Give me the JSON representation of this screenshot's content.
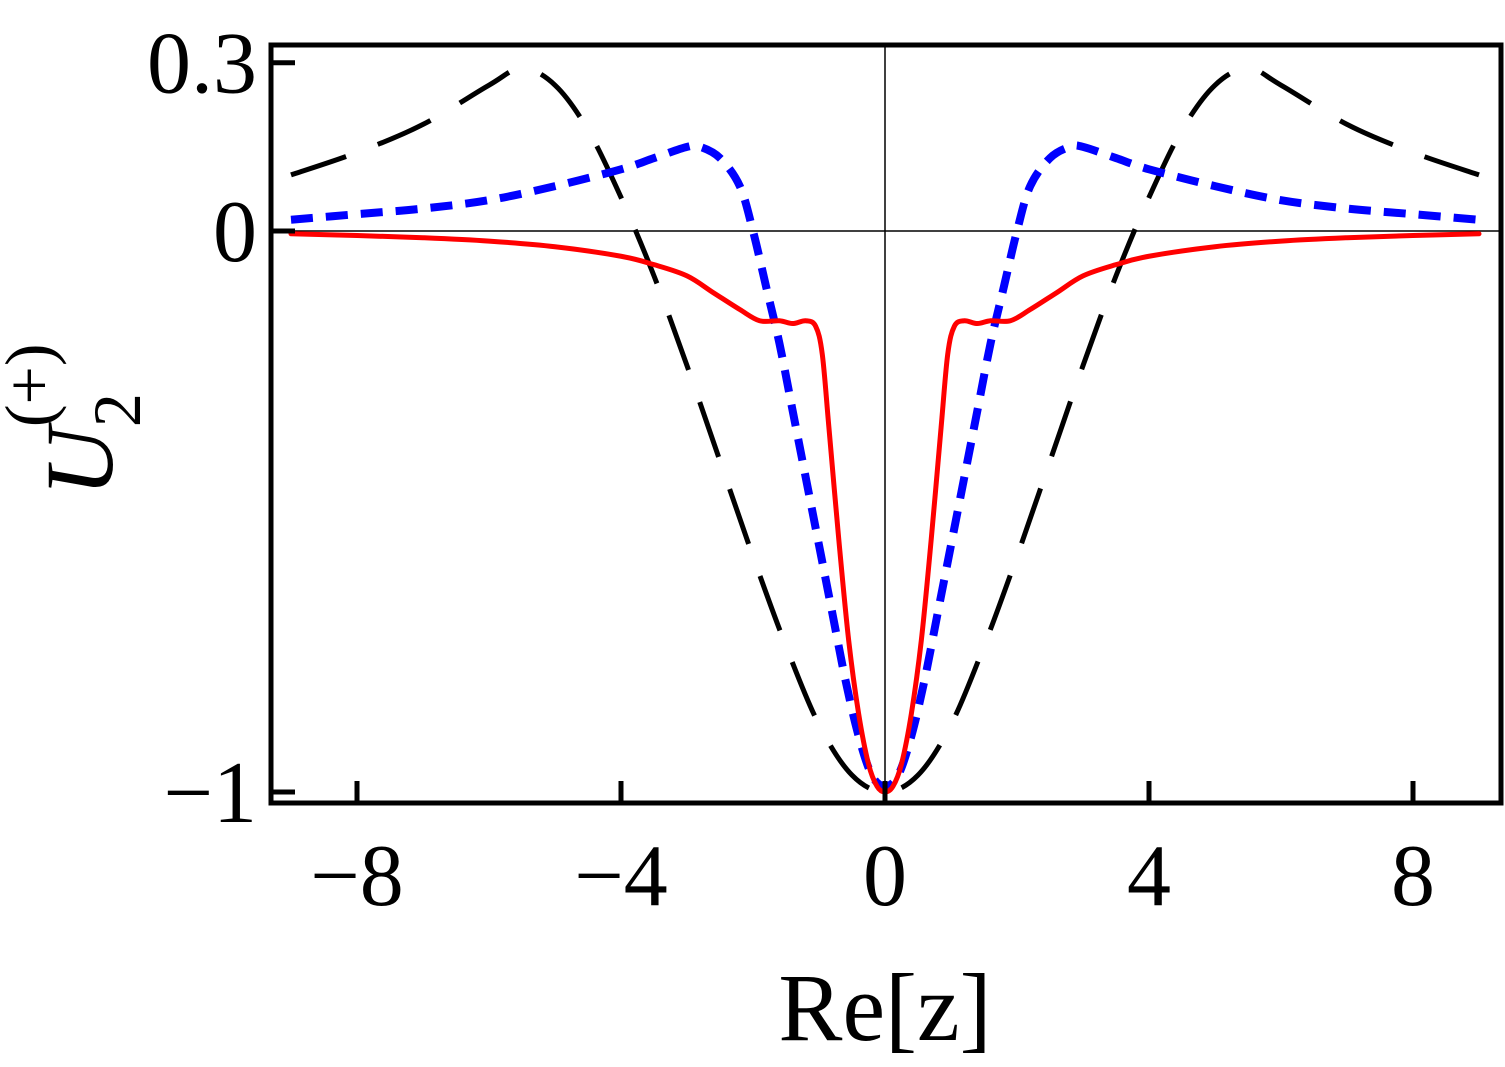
{
  "chart_data": {
    "type": "line",
    "title": "",
    "xlabel": "Re[z]",
    "ylabel": {
      "base": "U",
      "subscript": "2",
      "superscript": "(+)"
    },
    "xlim": [
      -9,
      9
    ],
    "ylim": [
      -1,
      0.3
    ],
    "xticks": [
      -8,
      -4,
      0,
      4,
      8
    ],
    "xtick_labels": [
      "−8",
      "−4",
      "0",
      "4",
      "8"
    ],
    "yticks": [
      -1,
      0,
      0.3
    ],
    "ytick_labels": [
      "−1",
      "0",
      "0.3"
    ],
    "grid": false,
    "zero_lines": true,
    "series": [
      {
        "style": "dashed",
        "color": "#000000",
        "x": [
          -9,
          -8,
          -7,
          -6,
          -5.5,
          -5,
          -4.5,
          -4,
          -3.5,
          -3,
          -2.5,
          -2,
          -1.5,
          -1,
          -0.5,
          0,
          0.5,
          1,
          1.5,
          2,
          2.5,
          3,
          3.5,
          4,
          4.5,
          5,
          5.5,
          6,
          7,
          8,
          9
        ],
        "y": [
          0.1,
          0.14,
          0.19,
          0.26,
          0.29,
          0.26,
          0.18,
          0.06,
          -0.08,
          -0.24,
          -0.41,
          -0.58,
          -0.74,
          -0.88,
          -0.97,
          -1.0,
          -0.97,
          -0.88,
          -0.74,
          -0.58,
          -0.41,
          -0.24,
          -0.08,
          0.06,
          0.18,
          0.26,
          0.29,
          0.26,
          0.19,
          0.14,
          0.1
        ]
      },
      {
        "style": "dotted",
        "color": "#0000ff",
        "x": [
          -9,
          -8,
          -7,
          -6,
          -5,
          -4,
          -3.5,
          -3,
          -2.8,
          -2.5,
          -2.2,
          -2,
          -1.8,
          -1.6,
          -1.4,
          -1.2,
          -1,
          -0.8,
          -0.6,
          -0.4,
          -0.2,
          0,
          0.2,
          0.4,
          0.6,
          0.8,
          1,
          1.2,
          1.4,
          1.6,
          1.8,
          2,
          2.2,
          2.5,
          2.8,
          3,
          3.5,
          4,
          5,
          6,
          7,
          8,
          9
        ],
        "y": [
          0.02,
          0.03,
          0.04,
          0.055,
          0.08,
          0.11,
          0.13,
          0.15,
          0.15,
          0.13,
          0.08,
          0.0,
          -0.1,
          -0.2,
          -0.32,
          -0.44,
          -0.56,
          -0.68,
          -0.8,
          -0.9,
          -0.97,
          -0.99,
          -0.97,
          -0.9,
          -0.8,
          -0.68,
          -0.56,
          -0.44,
          -0.32,
          -0.2,
          -0.1,
          0.0,
          0.08,
          0.13,
          0.15,
          0.15,
          0.13,
          0.11,
          0.08,
          0.055,
          0.04,
          0.03,
          0.02
        ]
      },
      {
        "style": "solid",
        "color": "#ff0000",
        "x": [
          -9,
          -8,
          -7,
          -6,
          -5,
          -4,
          -3.5,
          -3,
          -2.6,
          -2.2,
          -1.9,
          -1.6,
          -1.4,
          -1.2,
          -1.05,
          -0.95,
          -0.85,
          -0.7,
          -0.55,
          -0.4,
          -0.25,
          -0.12,
          0,
          0.12,
          0.25,
          0.4,
          0.55,
          0.7,
          0.85,
          0.95,
          1.05,
          1.2,
          1.4,
          1.6,
          1.9,
          2.2,
          2.6,
          3,
          3.5,
          4,
          5,
          6,
          7,
          8,
          9
        ],
        "y": [
          -0.005,
          -0.008,
          -0.012,
          -0.018,
          -0.028,
          -0.045,
          -0.06,
          -0.08,
          -0.11,
          -0.14,
          -0.16,
          -0.16,
          -0.165,
          -0.16,
          -0.17,
          -0.22,
          -0.35,
          -0.55,
          -0.73,
          -0.86,
          -0.95,
          -0.99,
          -1.0,
          -0.99,
          -0.95,
          -0.86,
          -0.73,
          -0.55,
          -0.35,
          -0.22,
          -0.17,
          -0.16,
          -0.165,
          -0.16,
          -0.16,
          -0.14,
          -0.11,
          -0.08,
          -0.06,
          -0.045,
          -0.028,
          -0.018,
          -0.012,
          -0.008,
          -0.005
        ]
      }
    ]
  }
}
